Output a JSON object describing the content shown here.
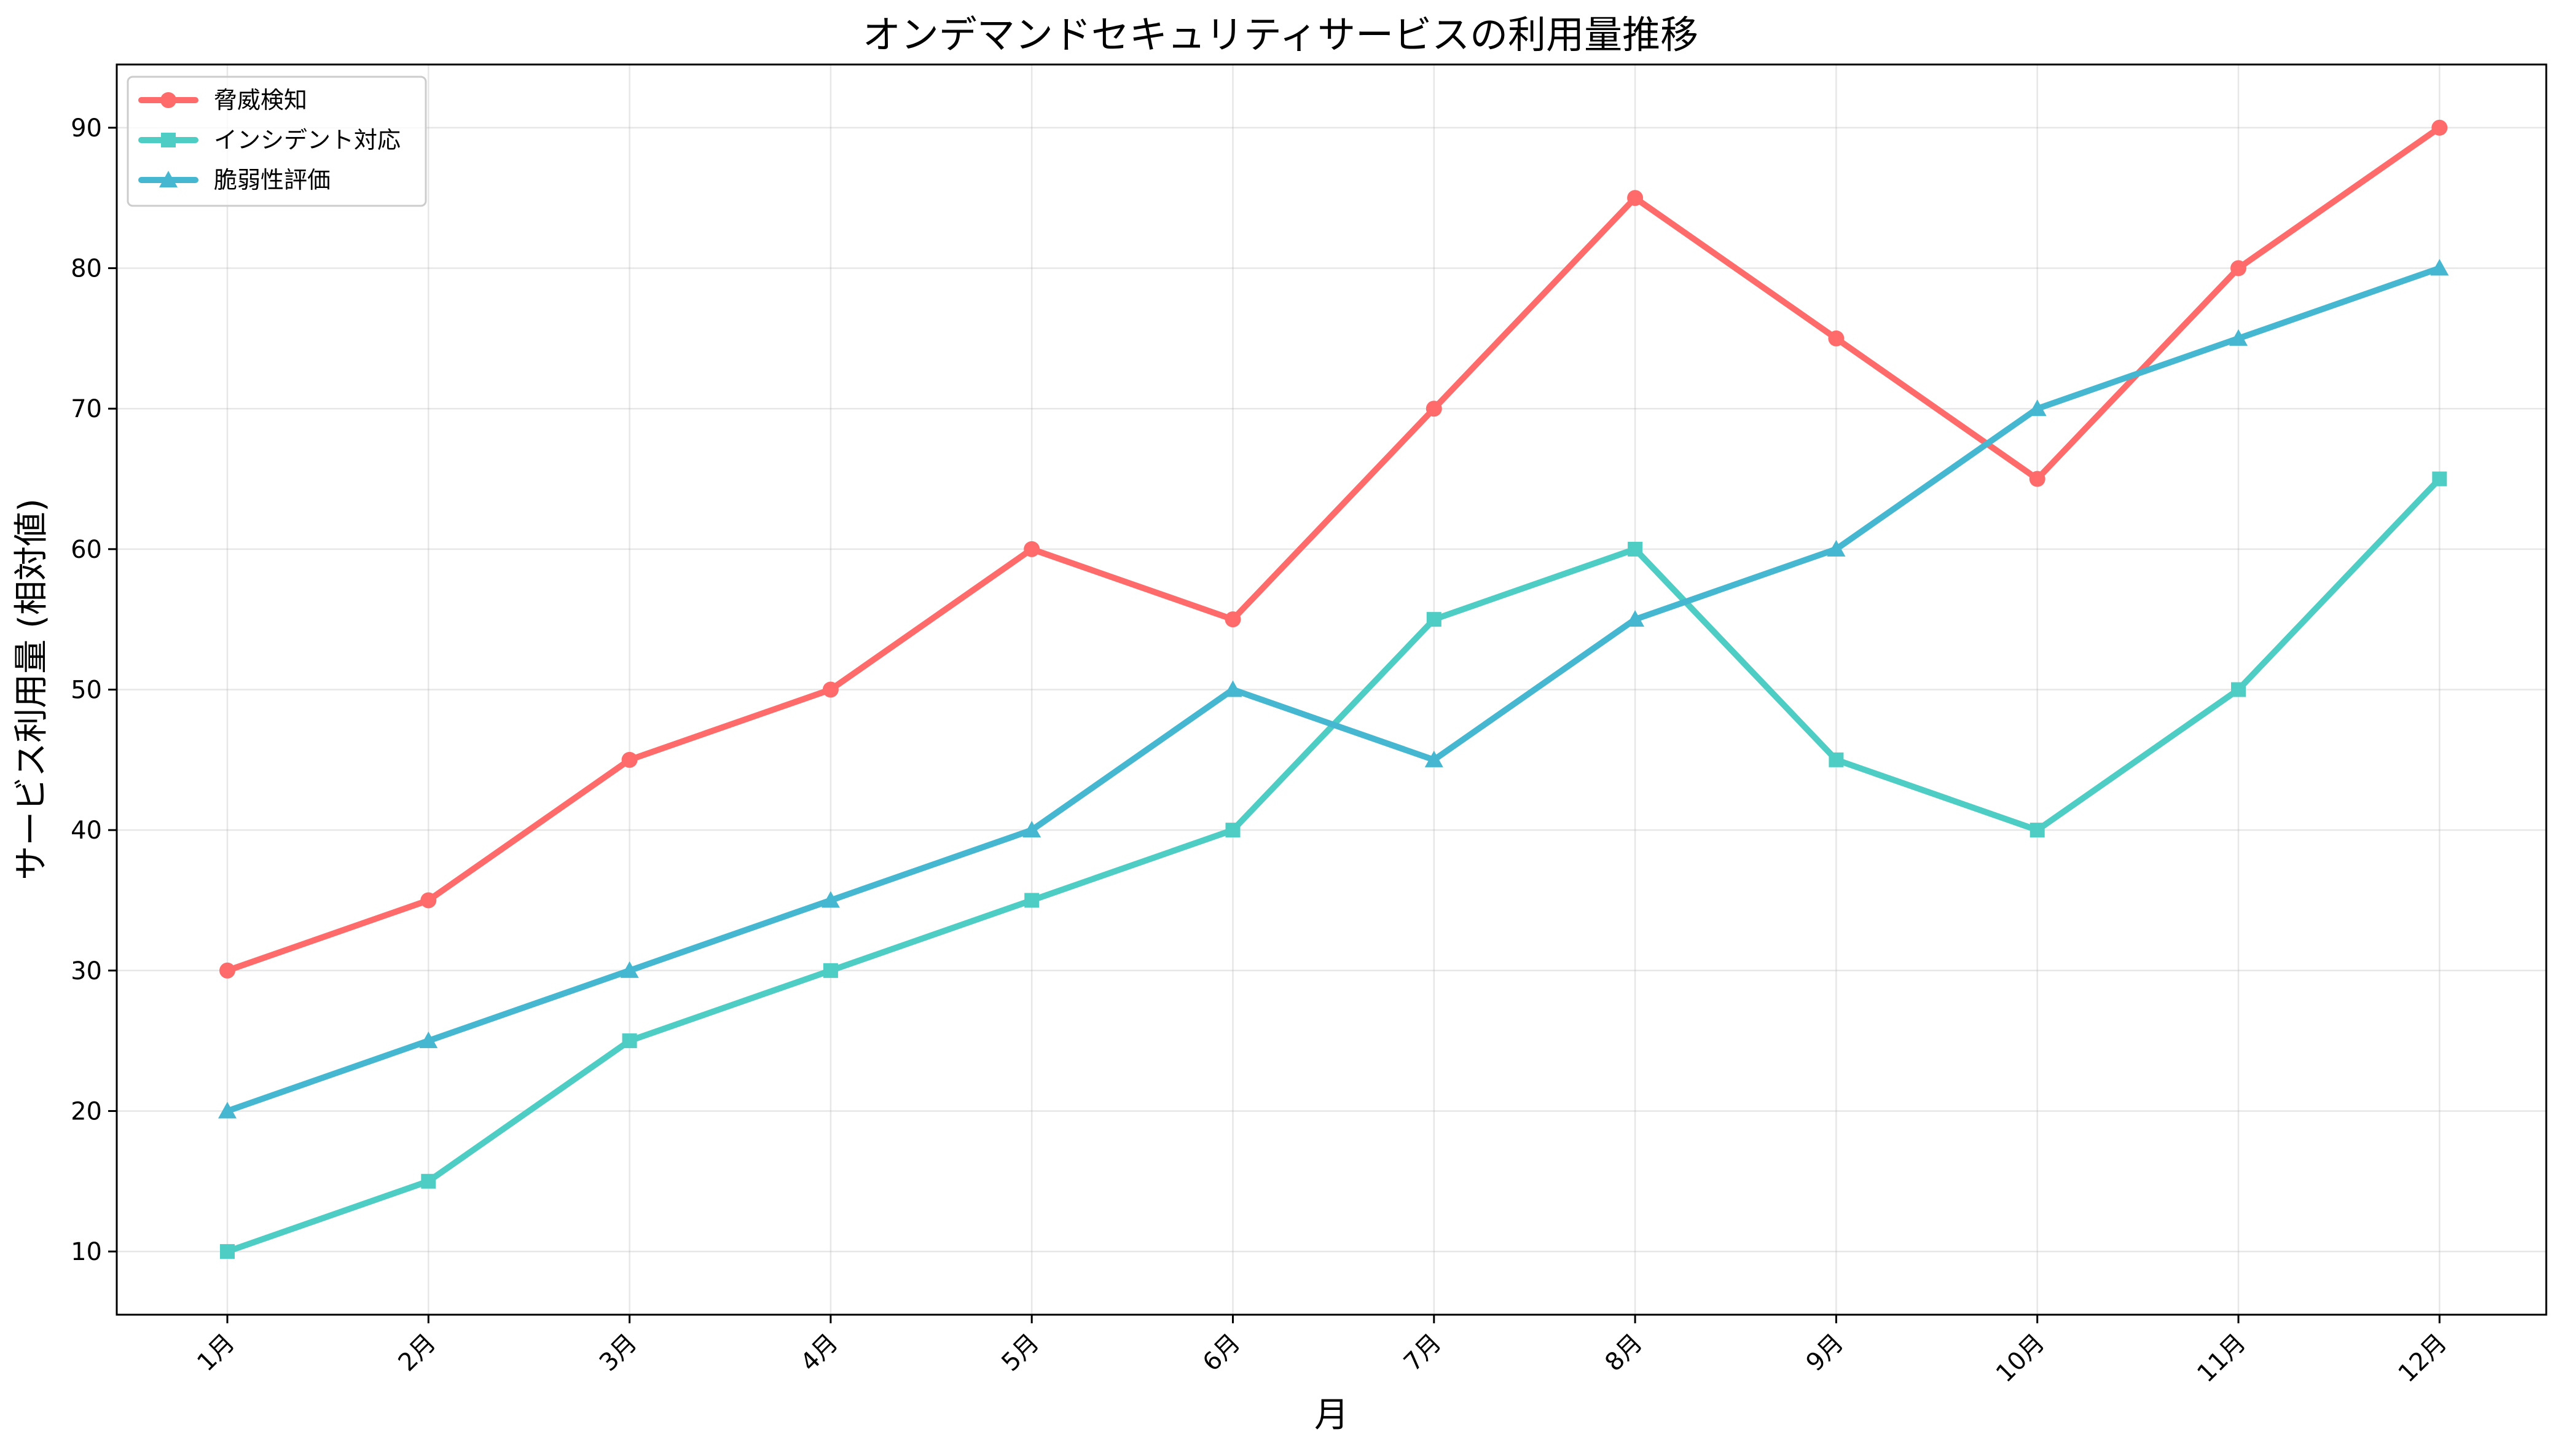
{
  "chart_data": {
    "type": "line",
    "title": "オンデマンドセキュリティサービスの利用量推移",
    "xlabel": "月",
    "ylabel": "サービス利用量 (相対値)",
    "categories": [
      "1月",
      "2月",
      "3月",
      "4月",
      "5月",
      "6月",
      "7月",
      "8月",
      "9月",
      "10月",
      "11月",
      "12月"
    ],
    "yticks": [
      10,
      20,
      30,
      40,
      50,
      60,
      70,
      80,
      90
    ],
    "ylim": [
      5.5,
      94.5
    ],
    "grid": true,
    "legend_position": "top-left",
    "series": [
      {
        "name": "脅威検知",
        "color": "#FF6B6B",
        "marker": "circle",
        "values": [
          30,
          35,
          45,
          50,
          60,
          55,
          70,
          85,
          75,
          65,
          80,
          90
        ]
      },
      {
        "name": "インシデント対応",
        "color": "#4ECDC4",
        "marker": "square",
        "values": [
          10,
          15,
          25,
          30,
          35,
          40,
          55,
          60,
          45,
          40,
          50,
          65
        ]
      },
      {
        "name": "脆弱性評価",
        "color": "#45B7D1",
        "marker": "triangle",
        "values": [
          20,
          25,
          30,
          35,
          40,
          50,
          45,
          55,
          60,
          70,
          75,
          80
        ]
      }
    ]
  }
}
